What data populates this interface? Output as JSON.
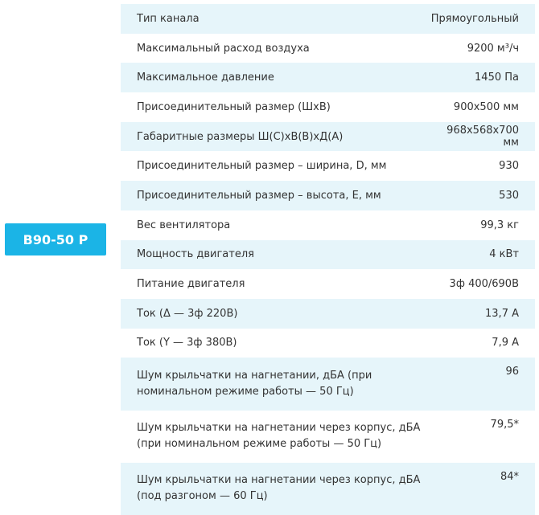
{
  "badge": {
    "label": "B90-50 P"
  },
  "table": {
    "rows": [
      [
        "Тип канала",
        "Прямоугольный"
      ],
      [
        "Максимальный расход воздуха",
        "9200 м³/ч"
      ],
      [
        "Максимальное давление",
        "1450 Па"
      ],
      [
        "Присоединительный размер (ШхВ)",
        "900х500 мм"
      ],
      [
        "Габаритные размеры Ш(С)хВ(В)хД(А)",
        "968х568х700 мм"
      ],
      [
        "Присоединительный размер – ширина, D, мм",
        "930"
      ],
      [
        "Присоединительный размер – высота, E, мм",
        "530"
      ],
      [
        "Вес вентилятора",
        "99,3 кг"
      ],
      [
        "Мощность двигателя",
        "4 кВт"
      ],
      [
        "Питание двигателя",
        "3ф 400/690В"
      ],
      [
        "Ток (Δ — 3ф 220В)",
        "13,7 А"
      ],
      [
        "Ток (Y — 3ф 380В)",
        "7,9 А"
      ],
      [
        "Шум крыльчатки на нагнетании, дБА (при номинальном режиме работы — 50 Гц)",
        "96"
      ],
      [
        "Шум крыльчатки на нагнетании через корпус, дБА (при номинальном режиме работы — 50 Гц)",
        "79,5*"
      ],
      [
        "Шум крыльчатки на нагнетании через корпус, дБА (под разгоном — 60 Гц)",
        "84*"
      ]
    ]
  }
}
